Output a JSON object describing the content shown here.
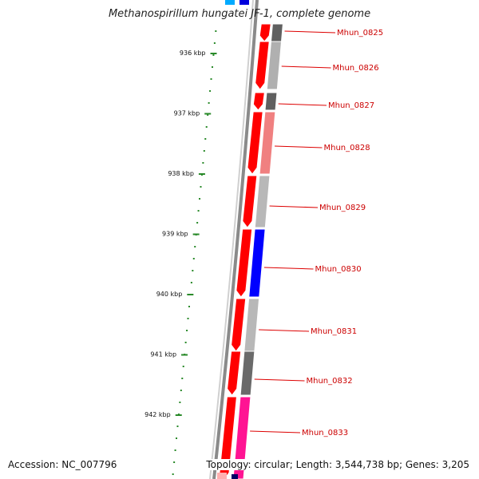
{
  "title": "Methanospirillum hungatei JF-1, complete genome",
  "footer": {
    "accession": "Accession: NC_007796",
    "summary": "Topology: circular; Length: 3,544,738 bp; Genes: 3,205"
  },
  "ruler": {
    "unit": "kbp",
    "labels": [
      {
        "text": "936 kbp",
        "kbp": 936
      },
      {
        "text": "937 kbp",
        "kbp": 937
      },
      {
        "text": "938 kbp",
        "kbp": 938
      },
      {
        "text": "939 kbp",
        "kbp": 939
      },
      {
        "text": "940 kbp",
        "kbp": 940
      },
      {
        "text": "941 kbp",
        "kbp": 941
      },
      {
        "text": "942 kbp",
        "kbp": 942
      }
    ]
  },
  "genes": [
    {
      "name": "Mhun_0825",
      "color": "#ff0000",
      "secondary_color": "#606060"
    },
    {
      "name": "Mhun_0826",
      "color": "#ff0000",
      "secondary_color": "#b0b0b0"
    },
    {
      "name": "Mhun_0827",
      "color": "#ff0000",
      "secondary_color": "#606060"
    },
    {
      "name": "Mhun_0828",
      "color": "#ff0000",
      "secondary_color": "#f08080"
    },
    {
      "name": "Mhun_0829",
      "color": "#ff0000",
      "secondary_color": "#b8b8b8"
    },
    {
      "name": "Mhun_0830",
      "color": "#ff0000",
      "secondary_color": "#0000ff"
    },
    {
      "name": "Mhun_0831",
      "color": "#ff0000",
      "secondary_color": "#b8b8b8"
    },
    {
      "name": "Mhun_0832",
      "color": "#ff0000",
      "secondary_color": "#6a6a6a"
    },
    {
      "name": "Mhun_0833",
      "color": "#ff0000",
      "secondary_color": "#ff1493"
    }
  ],
  "colors": {
    "ruler_ticks": "#2a8a2a",
    "label_lines": "#dd0000",
    "backbone": "#808080"
  }
}
